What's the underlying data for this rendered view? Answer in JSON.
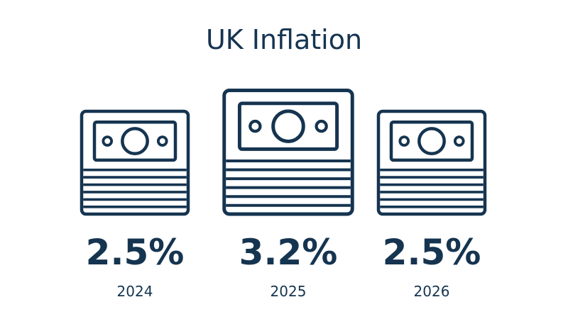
{
  "chart_data": {
    "type": "bar",
    "title": "UK Inflation",
    "categories": [
      "2024",
      "2025",
      "2026"
    ],
    "values": [
      2.5,
      3.2,
      2.5
    ],
    "value_labels": [
      "2.5%",
      "3.2%",
      "2.5%"
    ],
    "xlabel": "",
    "ylabel": "",
    "grid": false,
    "legend": "none",
    "mark_icon": "banknote-stack-icon"
  },
  "colors": {
    "ink": "#153450",
    "background": "#ffffff"
  }
}
